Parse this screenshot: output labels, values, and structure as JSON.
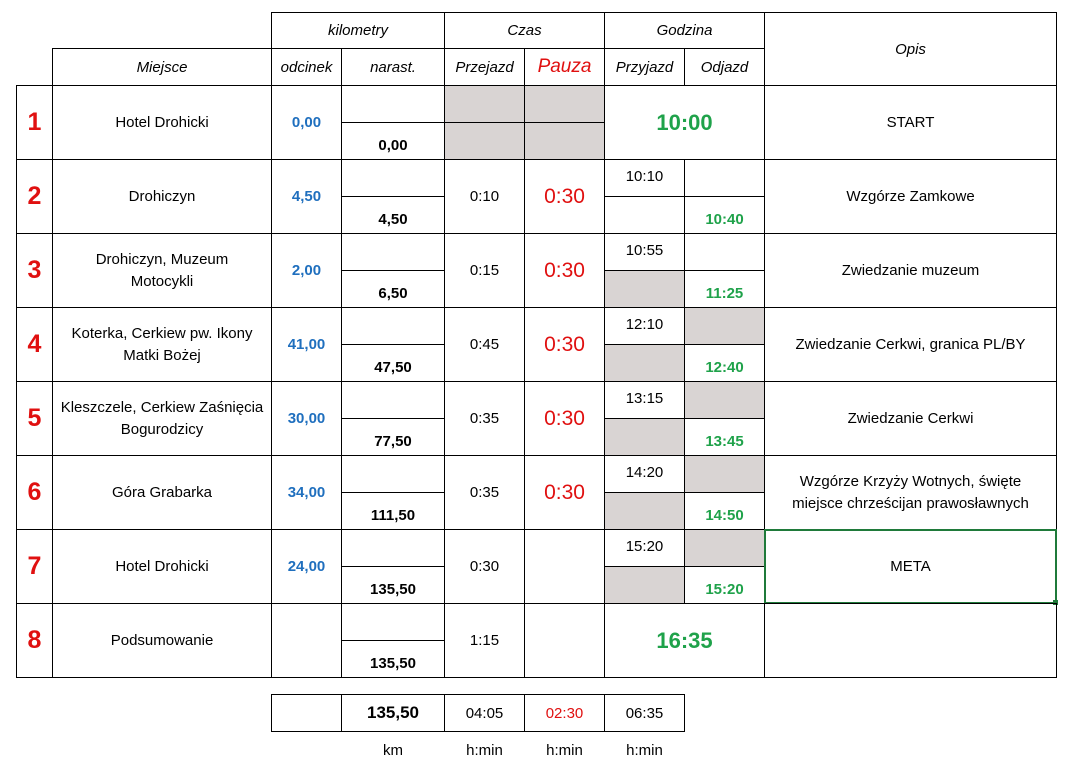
{
  "header": {
    "kilometry": "kilometry",
    "czas": "Czas",
    "godzina": "Godzina",
    "opis": "Opis",
    "miejsce": "Miejsce",
    "odcinek": "odcinek",
    "narast": "narast.",
    "przejazd": "Przejazd",
    "pauza": "Pauza",
    "przyjazd": "Przyjazd",
    "odjazd": "Odjazd"
  },
  "rows": [
    {
      "nr": "1",
      "miejsce": "Hotel Drohicki",
      "odcinek": "0,00",
      "narast": "0,00",
      "przejazd": "",
      "pauza": "",
      "przyjazd": "",
      "odjazd": "",
      "godzina_merged": "10:00",
      "opis": "START"
    },
    {
      "nr": "2",
      "miejsce": "Drohiczyn",
      "odcinek": "4,50",
      "narast": "4,50",
      "przejazd": "0:10",
      "pauza": "0:30",
      "przyjazd": "10:10",
      "odjazd": "10:40",
      "opis": "Wzgórze Zamkowe"
    },
    {
      "nr": "3",
      "miejsce": "Drohiczyn, Muzeum Motocykli",
      "odcinek": "2,00",
      "narast": "6,50",
      "przejazd": "0:15",
      "pauza": "0:30",
      "przyjazd": "10:55",
      "odjazd": "11:25",
      "opis": "Zwiedzanie muzeum"
    },
    {
      "nr": "4",
      "miejsce": "Koterka, Cerkiew pw. Ikony Matki Bożej",
      "odcinek": "41,00",
      "narast": "47,50",
      "przejazd": "0:45",
      "pauza": "0:30",
      "przyjazd": "12:10",
      "odjazd": "12:40",
      "opis": "Zwiedzanie Cerkwi, granica PL/BY"
    },
    {
      "nr": "5",
      "miejsce": "Kleszczele, Cerkiew Zaśnięcia Bogurodzicy",
      "odcinek": "30,00",
      "narast": "77,50",
      "przejazd": "0:35",
      "pauza": "0:30",
      "przyjazd": "13:15",
      "odjazd": "13:45",
      "opis": "Zwiedzanie Cerkwi"
    },
    {
      "nr": "6",
      "miejsce": "Góra Grabarka",
      "odcinek": "34,00",
      "narast": "111,50",
      "przejazd": "0:35",
      "pauza": "0:30",
      "przyjazd": "14:20",
      "odjazd": "14:50",
      "opis": "Wzgórze Krzyży Wotnych, święte miejsce chrześcijan prawosławnych"
    },
    {
      "nr": "7",
      "miejsce": "Hotel Drohicki",
      "odcinek": "24,00",
      "narast": "135,50",
      "przejazd": "0:30",
      "pauza": "",
      "przyjazd": "15:20",
      "odjazd": "15:20",
      "opis": "META"
    },
    {
      "nr": "8",
      "miejsce": "Podsumowanie",
      "odcinek": "",
      "narast": "135,50",
      "przejazd": "1:15",
      "pauza": "",
      "godzina_merged": "16:35",
      "opis": ""
    }
  ],
  "summary": {
    "km": "135,50",
    "przejazd": "04:05",
    "pauza": "02:30",
    "godzina": "06:35",
    "unit_km": "km",
    "unit_h1": "h:min",
    "unit_h2": "h:min",
    "unit_h3": "h:min"
  }
}
